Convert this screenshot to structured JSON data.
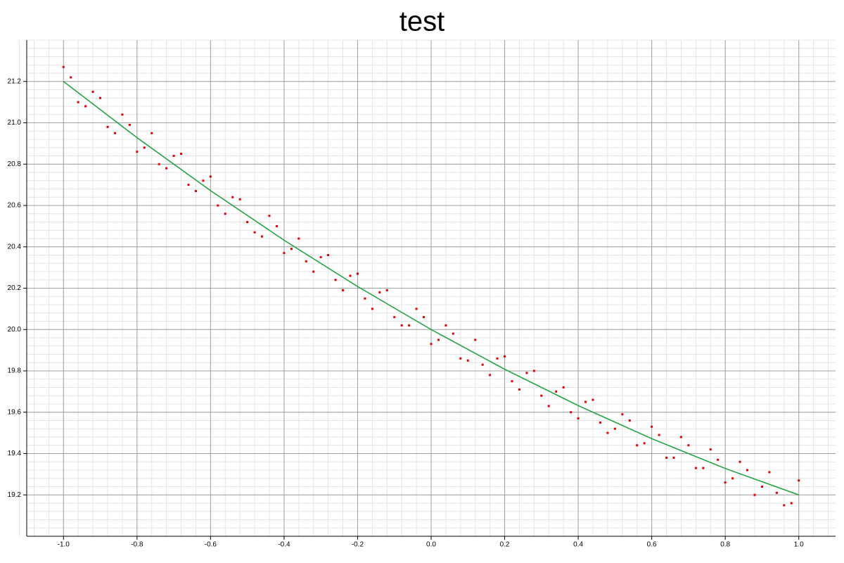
{
  "chart_data": {
    "type": "scatter",
    "title": "test",
    "xlim": [
      -1.1,
      1.1
    ],
    "ylim": [
      19.0,
      21.4
    ],
    "xticks": [
      {
        "value": -1.0,
        "label": "-1.0"
      },
      {
        "value": -0.8,
        "label": "-0.8"
      },
      {
        "value": -0.6,
        "label": "-0.6"
      },
      {
        "value": -0.4,
        "label": "-0.4"
      },
      {
        "value": -0.2,
        "label": "-0.2"
      },
      {
        "value": 0,
        "label": "0.0"
      },
      {
        "value": 0.2,
        "label": "0.2"
      },
      {
        "value": 0.4,
        "label": "0.4"
      },
      {
        "value": 0.6,
        "label": "0.6"
      },
      {
        "value": 0.8,
        "label": "0.8"
      },
      {
        "value": 1.0,
        "label": "1.0"
      }
    ],
    "yticks": [
      {
        "value": 19.2,
        "label": "19.2"
      },
      {
        "value": 19.4,
        "label": "19.4"
      },
      {
        "value": 19.6,
        "label": "19.6"
      },
      {
        "value": 19.8,
        "label": "19.8"
      },
      {
        "value": 20.0,
        "label": "20.0"
      },
      {
        "value": 20.2,
        "label": "20.2"
      },
      {
        "value": 20.4,
        "label": "20.4"
      },
      {
        "value": 20.6,
        "label": "20.6"
      },
      {
        "value": 20.8,
        "label": "20.8"
      },
      {
        "value": 21.0,
        "label": "21.0"
      },
      {
        "value": 21.2,
        "label": "21.2"
      }
    ],
    "grid": true,
    "minor_grid_divisions": 5,
    "series": [
      {
        "type": "scatter",
        "color": "#e00000",
        "x": [
          -1.0,
          -0.96,
          -0.92,
          -0.88,
          -0.84,
          -0.8,
          -0.76,
          -0.72,
          -0.68,
          -0.64,
          -0.6,
          -0.56,
          -0.52,
          -0.48,
          -0.44,
          -0.4,
          -0.36,
          -0.32,
          -0.28,
          -0.24,
          -0.2,
          -0.16,
          -0.12,
          -0.08,
          -0.04,
          0.0,
          0.04,
          0.08,
          0.12,
          0.16,
          0.2,
          0.24,
          0.28,
          0.32,
          0.36,
          0.4,
          0.44,
          0.48,
          0.52,
          0.56,
          0.6,
          0.64,
          0.68,
          0.72,
          0.76,
          0.8,
          0.84,
          0.88,
          0.92,
          0.96,
          1.0,
          -0.98,
          -0.94,
          -0.9,
          -0.86,
          -0.82,
          -0.78,
          -0.74,
          -0.7,
          -0.66,
          -0.62,
          -0.58,
          -0.54,
          -0.5,
          -0.46,
          -0.42,
          -0.38,
          -0.34,
          -0.3,
          -0.26,
          -0.22,
          -0.18,
          -0.14,
          -0.1,
          -0.06,
          -0.02,
          0.02,
          0.06,
          0.1,
          0.14,
          0.18,
          0.22,
          0.26,
          0.3,
          0.34,
          0.38,
          0.42,
          0.46,
          0.5,
          0.54,
          0.58,
          0.62,
          0.66,
          0.7,
          0.74,
          0.78,
          0.82,
          0.86,
          0.9,
          0.94,
          0.98
        ],
        "values": [
          21.27,
          21.1,
          21.15,
          20.98,
          21.04,
          20.86,
          20.95,
          20.78,
          20.85,
          20.67,
          20.74,
          20.56,
          20.63,
          20.47,
          20.55,
          20.37,
          20.44,
          20.28,
          20.36,
          20.19,
          20.27,
          20.1,
          20.19,
          20.02,
          20.1,
          19.93,
          20.02,
          19.86,
          19.95,
          19.78,
          19.87,
          19.71,
          19.8,
          19.63,
          19.72,
          19.57,
          19.66,
          19.5,
          19.59,
          19.44,
          19.53,
          19.38,
          19.48,
          19.33,
          19.42,
          19.26,
          19.36,
          19.2,
          19.31,
          19.15,
          19.27,
          21.22,
          21.08,
          21.12,
          20.95,
          20.99,
          20.88,
          20.8,
          20.84,
          20.7,
          20.72,
          20.6,
          20.64,
          20.52,
          20.45,
          20.5,
          20.39,
          20.33,
          20.35,
          20.24,
          20.26,
          20.15,
          20.18,
          20.06,
          20.02,
          20.06,
          19.95,
          19.98,
          19.85,
          19.83,
          19.86,
          19.75,
          19.79,
          19.68,
          19.7,
          19.6,
          19.65,
          19.55,
          19.52,
          19.56,
          19.45,
          19.49,
          19.38,
          19.44,
          19.33,
          19.37,
          19.28,
          19.32,
          19.24,
          19.21,
          19.16
        ]
      },
      {
        "type": "line",
        "color": "#1aa13a",
        "x": [
          -1.0,
          -0.8,
          -0.6,
          -0.4,
          -0.2,
          0,
          0.2,
          0.4,
          0.6,
          0.8,
          1.0
        ],
        "values": [
          21.2,
          20.928,
          20.672,
          20.432,
          20.208,
          20.0,
          19.808,
          19.632,
          19.472,
          19.328,
          19.2
        ]
      }
    ]
  }
}
